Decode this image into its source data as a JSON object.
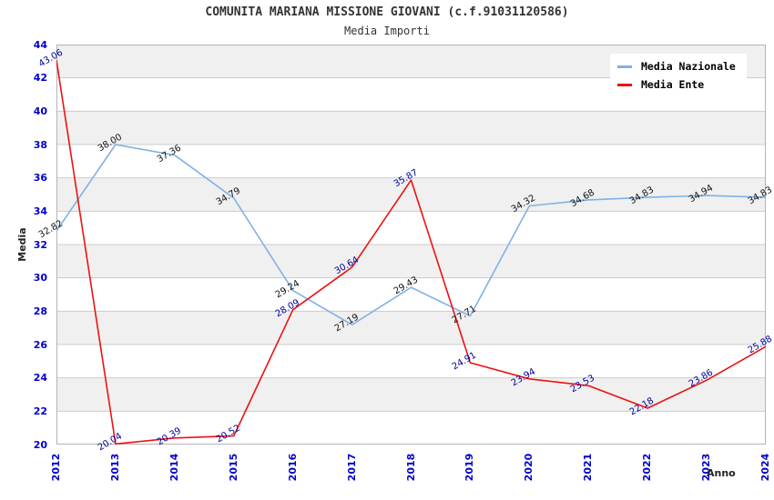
{
  "header": {
    "title": "COMUNITA MARIANA MISSIONE GIOVANI (c.f.91031120586)",
    "subtitle": "Media Importi"
  },
  "chart_data": {
    "type": "line",
    "title": "COMUNITA MARIANA MISSIONE GIOVANI (c.f.91031120586)",
    "subtitle": "Media Importi",
    "xlabel": "Anno",
    "ylabel": "Media",
    "x": [
      2012,
      2013,
      2014,
      2015,
      2016,
      2017,
      2018,
      2019,
      2020,
      2021,
      2022,
      2023,
      2024
    ],
    "series": [
      {
        "name": "Media Nazionale",
        "color": "#7fb2e5",
        "label_color": "#111111",
        "values": [
          32.82,
          38.0,
          37.36,
          34.79,
          29.24,
          27.19,
          29.43,
          27.71,
          34.32,
          34.68,
          34.83,
          34.94,
          34.83
        ]
      },
      {
        "name": "Media Ente",
        "color": "#ee1111",
        "label_color": "#0000a0",
        "values": [
          43.06,
          20.04,
          20.39,
          20.52,
          28.09,
          30.64,
          35.87,
          24.91,
          23.94,
          23.53,
          22.18,
          23.86,
          25.88
        ]
      }
    ],
    "ylim": [
      20,
      44
    ],
    "ytick_step": 2,
    "grid": true,
    "legend_position": "top-right",
    "colors": {
      "band": "#f0f0f0",
      "gridline": "#cccccc",
      "plot_border": "#b3b3b3",
      "tick_label": "#0000cc",
      "axis_label": "#222222",
      "title_text": "#333333"
    }
  }
}
